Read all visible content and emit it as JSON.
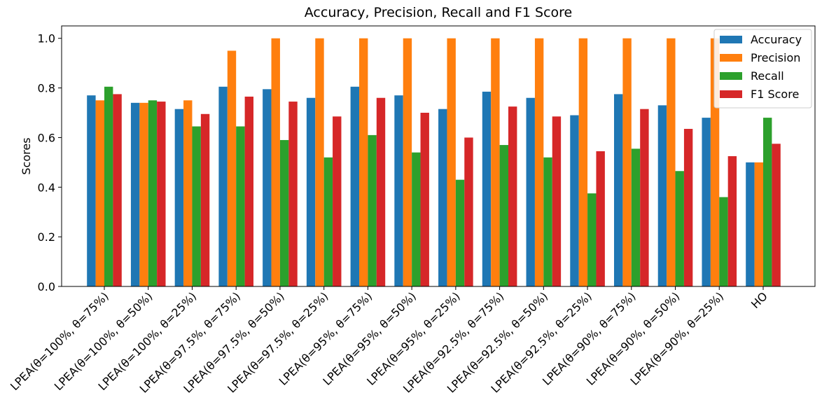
{
  "chart_data": {
    "type": "bar",
    "title": "Accuracy, Precision, Recall and F1 Score",
    "xlabel": "",
    "ylabel": "Scores",
    "ylim": [
      0,
      1.05
    ],
    "yticks": [
      "0.0",
      "0.2",
      "0.4",
      "0.6",
      "0.8",
      "1.0"
    ],
    "grid": false,
    "legend_position": "top-right",
    "categories": [
      "LPEA(θ=100%, θ=75%)",
      "LPEA(θ=100%, θ=50%)",
      "LPEA(θ=100%, θ=25%)",
      "LPEA(θ=97.5%, θ=75%)",
      "LPEA(θ=97.5%, θ=50%)",
      "LPEA(θ=97.5%, θ=25%)",
      "LPEA(θ=95%, θ=75%)",
      "LPEA(θ=95%, θ=50%)",
      "LPEA(θ=95%, θ=25%)",
      "LPEA(θ=92.5%, θ=75%)",
      "LPEA(θ=92.5%, θ=50%)",
      "LPEA(θ=92.5%, θ=25%)",
      "LPEA(θ=90%, θ=75%)",
      "LPEA(θ=90%, θ=50%)",
      "LPEA(θ=90%, θ=25%)",
      "HO"
    ],
    "series": [
      {
        "name": "Accuracy",
        "color": "#1f77b4",
        "values": [
          0.77,
          0.74,
          0.715,
          0.805,
          0.795,
          0.76,
          0.805,
          0.77,
          0.715,
          0.785,
          0.76,
          0.69,
          0.775,
          0.73,
          0.68,
          0.5
        ]
      },
      {
        "name": "Precision",
        "color": "#ff7f0e",
        "values": [
          0.75,
          0.74,
          0.75,
          0.95,
          1.0,
          1.0,
          1.0,
          1.0,
          1.0,
          1.0,
          1.0,
          1.0,
          1.0,
          1.0,
          1.0,
          0.5
        ]
      },
      {
        "name": "Recall",
        "color": "#2ca02c",
        "values": [
          0.805,
          0.75,
          0.645,
          0.645,
          0.59,
          0.52,
          0.61,
          0.54,
          0.43,
          0.57,
          0.52,
          0.375,
          0.555,
          0.465,
          0.36,
          0.68
        ]
      },
      {
        "name": "F1 Score",
        "color": "#d62728",
        "values": [
          0.775,
          0.745,
          0.695,
          0.765,
          0.745,
          0.685,
          0.76,
          0.7,
          0.6,
          0.725,
          0.685,
          0.545,
          0.715,
          0.635,
          0.525,
          0.575
        ]
      }
    ]
  }
}
